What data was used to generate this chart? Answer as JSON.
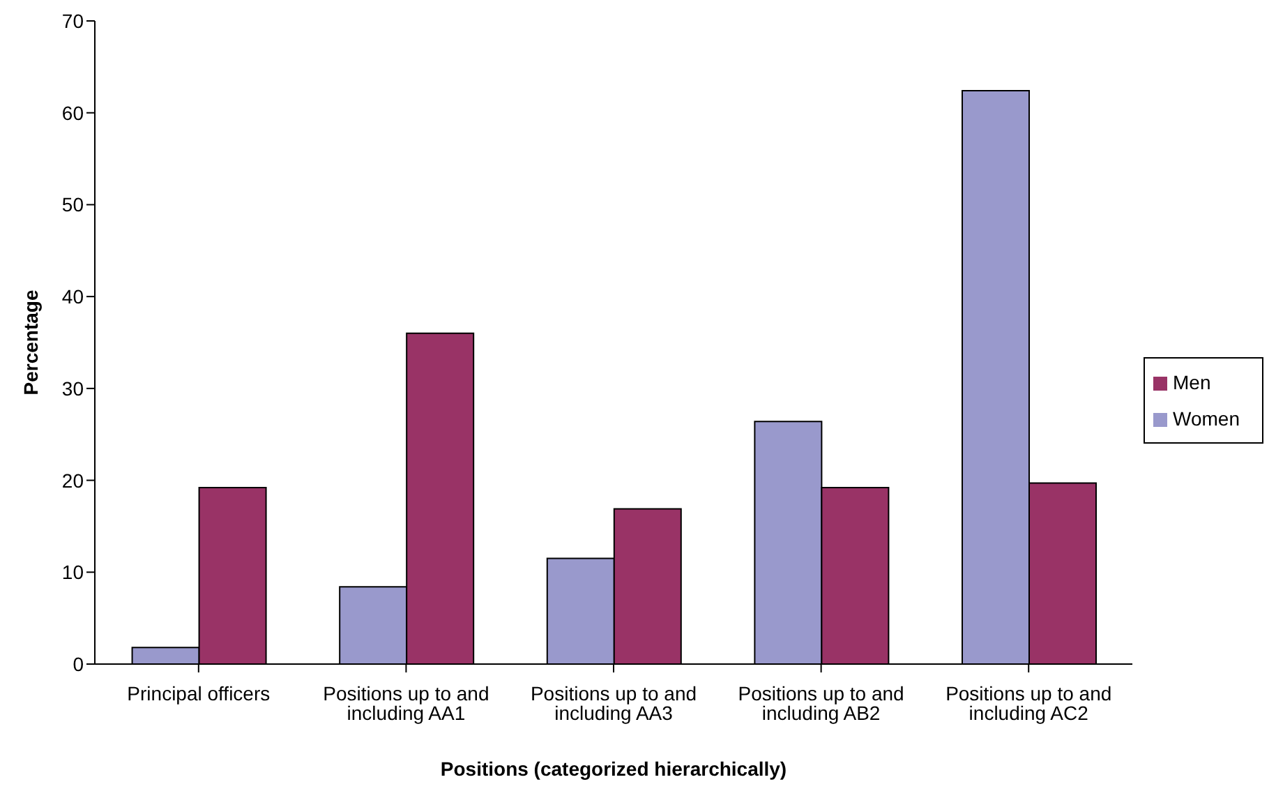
{
  "chart_data": {
    "type": "bar",
    "xlabel": "Positions (categorized hierarchically)",
    "ylabel": "Percentage",
    "categories": [
      "Principal officers",
      "Positions up to and including AA1",
      "Positions up to and including AA3",
      "Positions up to and including AB2",
      "Positions up to and including AC2"
    ],
    "series": [
      {
        "name": "Women",
        "color": "#9999cc",
        "values": [
          1.8,
          8.4,
          11.5,
          26.4,
          62.4
        ]
      },
      {
        "name": "Men",
        "color": "#993366",
        "values": [
          19.2,
          36.0,
          16.9,
          19.2,
          19.7
        ]
      }
    ],
    "ylim": [
      0,
      70
    ],
    "yticks": [
      0,
      10,
      20,
      30,
      40,
      50,
      60,
      70
    ],
    "grid": false,
    "legend": "right"
  }
}
